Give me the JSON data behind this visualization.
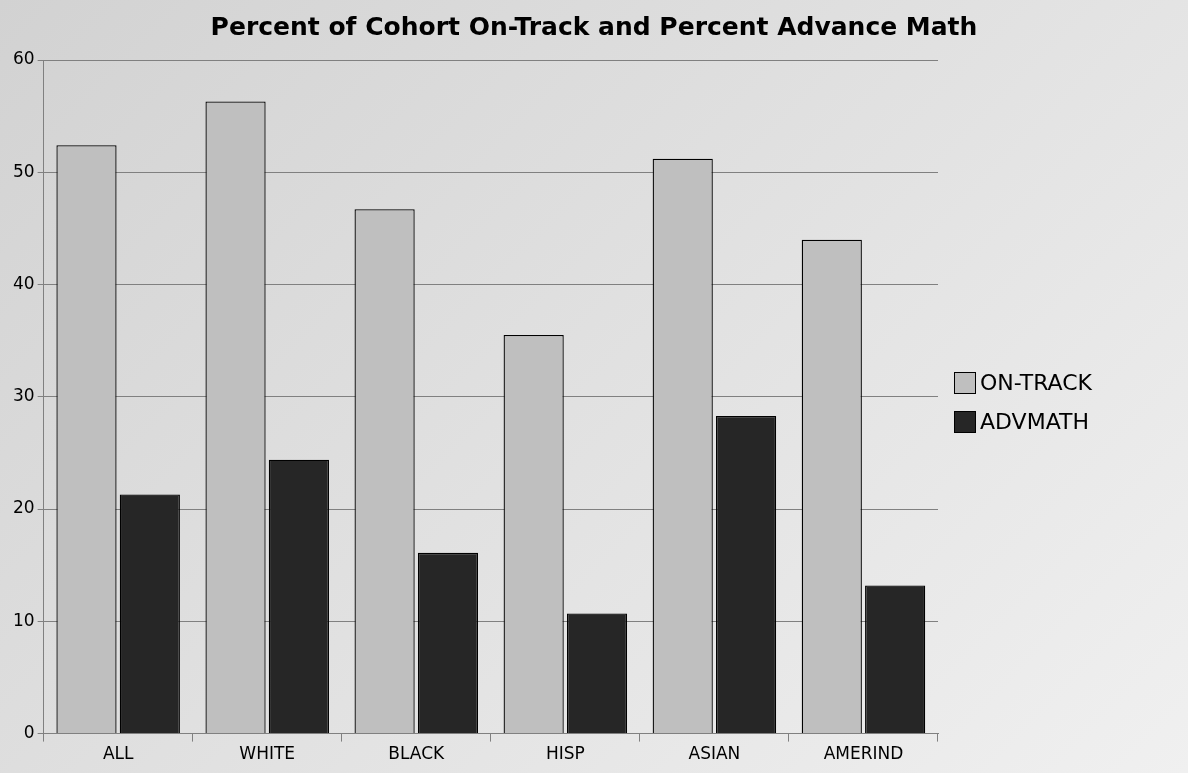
{
  "chart_data": {
    "type": "bar",
    "title": "Percent of Cohort On-Track and Percent Advance Math",
    "categories": [
      "ALL",
      "WHITE",
      "BLACK",
      "HISP",
      "ASIAN",
      "AMERIND"
    ],
    "series": [
      {
        "name": "ON-TRACK",
        "color": "#bfbfbf",
        "values": [
          52.4,
          56.3,
          46.7,
          35.5,
          51.2,
          44.0
        ]
      },
      {
        "name": "ADVMATH",
        "color": "#262626",
        "values": [
          21.3,
          24.4,
          16.1,
          10.7,
          28.3,
          13.2
        ]
      }
    ],
    "ylim": [
      0,
      60
    ],
    "yticks": [
      0,
      10,
      20,
      30,
      40,
      50,
      60
    ],
    "grid": "y",
    "legend": "right"
  }
}
